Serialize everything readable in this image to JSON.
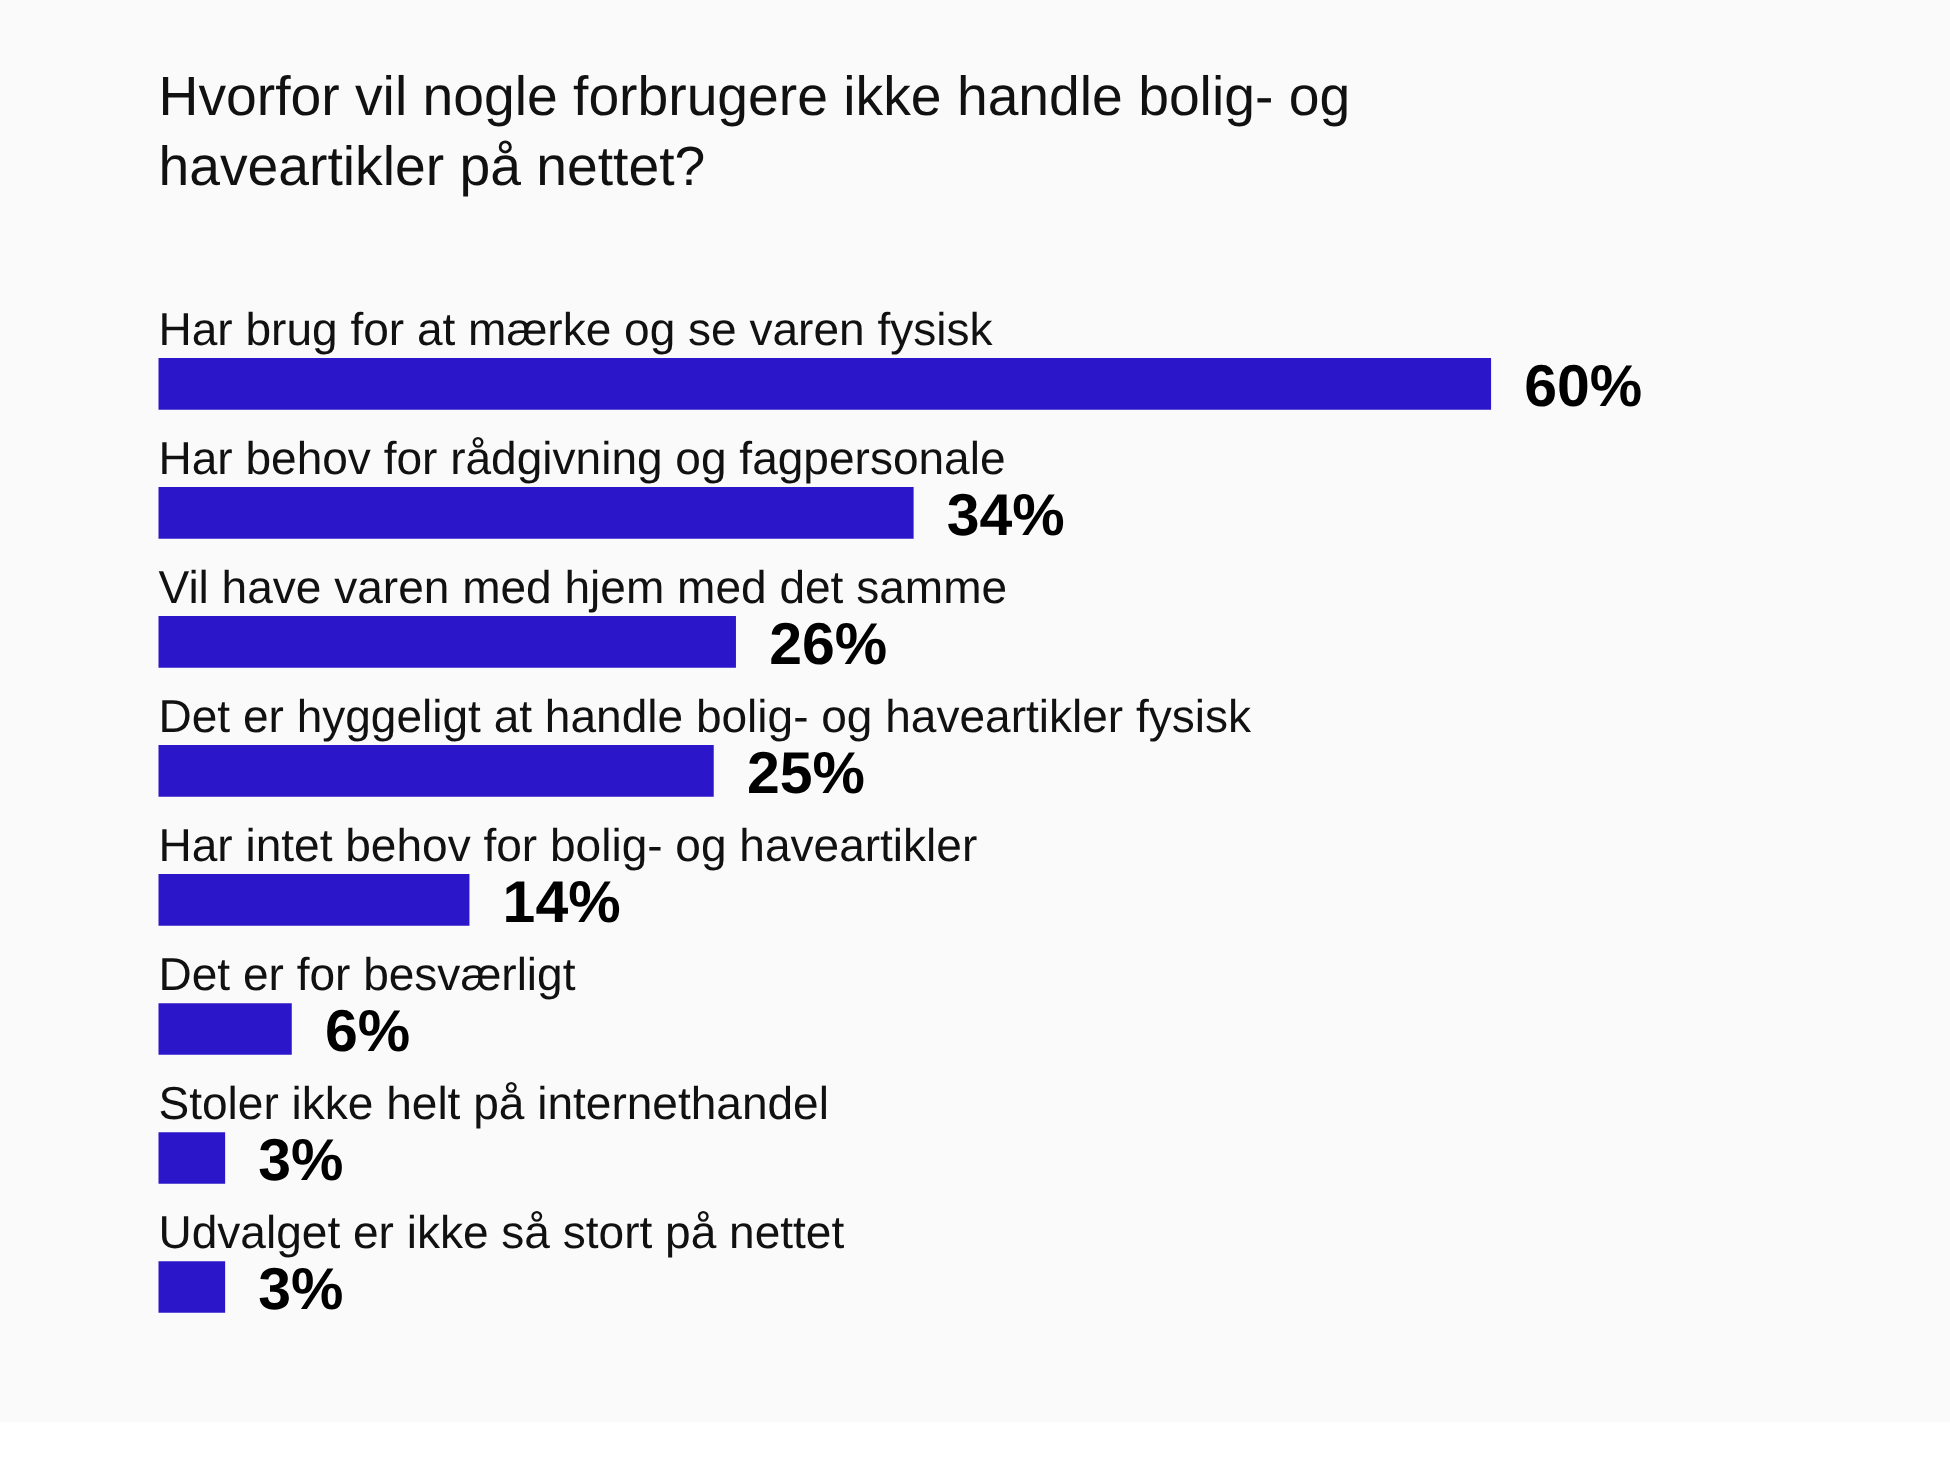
{
  "chart_data": {
    "type": "bar",
    "orientation": "horizontal",
    "title": "Hvorfor vil nogle forbrugere ikke handle bolig- og haveartikler på nettet?",
    "categories": [
      "Har brug for at mærke og se varen fysisk",
      "Har behov for rådgivning og fagpersonale",
      "Vil have varen med hjem med det samme",
      "Det er hyggeligt at handle bolig- og haveartikler fysisk",
      "Har intet behov for bolig- og haveartikler",
      "Det er for besværligt",
      "Stoler ikke helt på internethandel",
      "Udvalget er ikke så stort på nettet"
    ],
    "values": [
      60,
      34,
      26,
      25,
      14,
      6,
      3,
      3
    ],
    "value_labels": [
      "60%",
      "34%",
      "26%",
      "25%",
      "14%",
      "6%",
      "3%",
      "3%"
    ],
    "color": "#2b17c9",
    "xlim": [
      0,
      60
    ],
    "tick_labels": false
  }
}
